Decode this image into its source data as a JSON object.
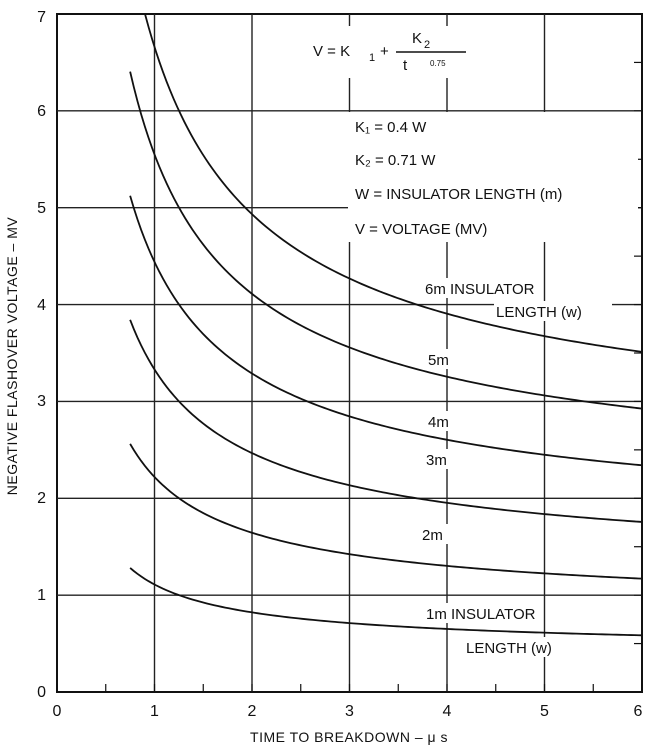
{
  "chart_data": {
    "type": "line",
    "xlabel": "TIME TO BREAKDOWN – μ s",
    "ylabel": "NEGATIVE FLASHOVER VOLTAGE – MV",
    "xlim": [
      0,
      6
    ],
    "ylim": [
      0,
      7
    ],
    "x_ticks": [
      "0",
      "1",
      "2",
      "3",
      "4",
      "5",
      "6"
    ],
    "y_ticks": [
      "0",
      "1",
      "2",
      "3",
      "4",
      "5",
      "6",
      "7"
    ],
    "grid": true,
    "formula": {
      "lhs": "V = K",
      "k1_sub": "1",
      "plus": "+",
      "k2": "K",
      "k2_sub": "2",
      "den": "t",
      "exp": "0.75"
    },
    "legend_lines": [
      "K₁ = 0.4 W",
      "K₂ = 0.71 W",
      "W = INSULATOR LENGTH (m)",
      "V = VOLTAGE (MV)"
    ],
    "series": [
      {
        "label": "1m INSULATOR",
        "label2": "LENGTH (w)",
        "W": 1
      },
      {
        "label": "2m",
        "W": 2
      },
      {
        "label": "3m",
        "W": 3
      },
      {
        "label": "4m",
        "W": 4
      },
      {
        "label": "5m",
        "W": 5
      },
      {
        "label": "6m INSULATOR",
        "label2": "LENGTH (w)",
        "W": 6
      }
    ],
    "x_start": 0.75,
    "x_end": 6
  }
}
